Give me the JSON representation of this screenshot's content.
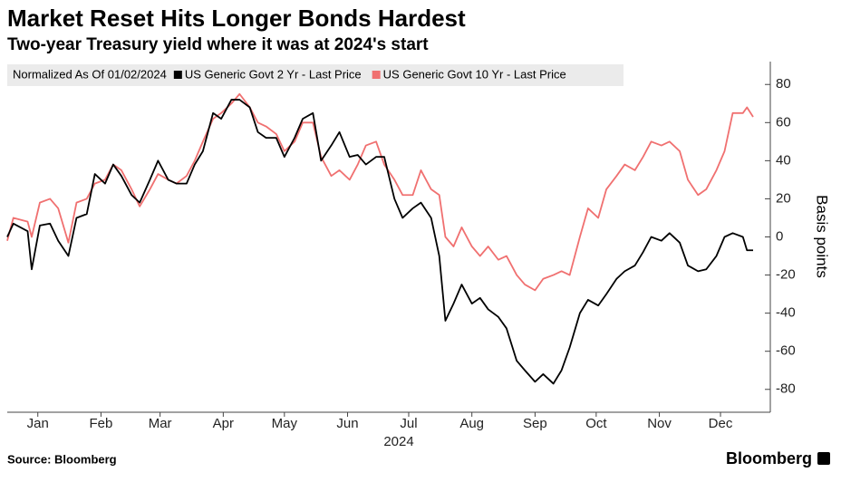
{
  "chart_data": {
    "type": "line",
    "title": "Market Reset Hits Longer Bonds Hardest",
    "subtitle": "Two-year Treasury yield where it was at 2024's start",
    "legend_title": "Normalized As Of 01/02/2024",
    "x_label": "2024",
    "y_label": "Basis points",
    "source": "Source: Bloomberg",
    "brand": "Bloomberg",
    "x": [
      0,
      3,
      10,
      12,
      16,
      21,
      25,
      30,
      34,
      39,
      43,
      48,
      52,
      56,
      61,
      65,
      70,
      74,
      79,
      83,
      88,
      92,
      96,
      101,
      105,
      110,
      114,
      119,
      123,
      127,
      132,
      136,
      141,
      145,
      150,
      154,
      159,
      163,
      168,
      172,
      176,
      181,
      185,
      190,
      194,
      199,
      203,
      208,
      212,
      215,
      219,
      223,
      228,
      232,
      236,
      241,
      245,
      250,
      254,
      259,
      263,
      268,
      272,
      276,
      281,
      285,
      290,
      294,
      299,
      303,
      308,
      312,
      316,
      321,
      325,
      330,
      334,
      339,
      343,
      348,
      352,
      356,
      361,
      363,
      366
    ],
    "xlim": [
      0,
      370
    ],
    "xticks": [
      {
        "value": 15,
        "label": "Jan"
      },
      {
        "value": 46,
        "label": "Feb"
      },
      {
        "value": 75,
        "label": "Mar"
      },
      {
        "value": 106,
        "label": "Apr"
      },
      {
        "value": 136,
        "label": "May"
      },
      {
        "value": 167,
        "label": "Jun"
      },
      {
        "value": 197,
        "label": "Jul"
      },
      {
        "value": 228,
        "label": "Aug"
      },
      {
        "value": 259,
        "label": "Sep"
      },
      {
        "value": 289,
        "label": "Oct"
      },
      {
        "value": 320,
        "label": "Nov"
      },
      {
        "value": 350,
        "label": "Dec"
      }
    ],
    "ylim": [
      -92,
      92
    ],
    "yticks": [
      -80,
      -60,
      -40,
      -20,
      0,
      20,
      40,
      60,
      80
    ],
    "grid": false,
    "series": [
      {
        "name": "US Generic Govt 2 Yr - Last Price",
        "color": "#000000",
        "values": [
          0,
          7,
          3,
          -17,
          6,
          7,
          -2,
          -10,
          10,
          12,
          33,
          28,
          38,
          32,
          22,
          18,
          30,
          40,
          30,
          28,
          28,
          38,
          45,
          65,
          62,
          72,
          72,
          68,
          55,
          52,
          52,
          42,
          52,
          62,
          65,
          40,
          48,
          55,
          42,
          43,
          38,
          42,
          42,
          20,
          10,
          15,
          18,
          10,
          -10,
          -44,
          -35,
          -25,
          -35,
          -32,
          -38,
          -42,
          -48,
          -65,
          -70,
          -76,
          -72,
          -77,
          -70,
          -58,
          -40,
          -33,
          -36,
          -30,
          -22,
          -18,
          -15,
          -8,
          0,
          -2,
          2,
          -3,
          -15,
          -18,
          -17,
          -10,
          0,
          2,
          0,
          -7,
          -7
        ]
      },
      {
        "name": "US Generic Govt 10 Yr - Last Price",
        "color": "#f07070",
        "values": [
          -2,
          10,
          8,
          0,
          18,
          20,
          15,
          -3,
          18,
          20,
          28,
          30,
          38,
          35,
          25,
          16,
          25,
          33,
          30,
          28,
          32,
          40,
          50,
          62,
          65,
          70,
          75,
          68,
          60,
          58,
          54,
          45,
          50,
          60,
          60,
          42,
          32,
          35,
          30,
          38,
          48,
          50,
          38,
          30,
          22,
          22,
          35,
          25,
          22,
          0,
          -5,
          5,
          -5,
          -10,
          -5,
          -12,
          -10,
          -20,
          -25,
          -28,
          -22,
          -20,
          -18,
          -20,
          0,
          15,
          10,
          25,
          32,
          38,
          35,
          42,
          50,
          48,
          50,
          45,
          30,
          22,
          25,
          35,
          45,
          65,
          65,
          68,
          63
        ]
      }
    ]
  }
}
